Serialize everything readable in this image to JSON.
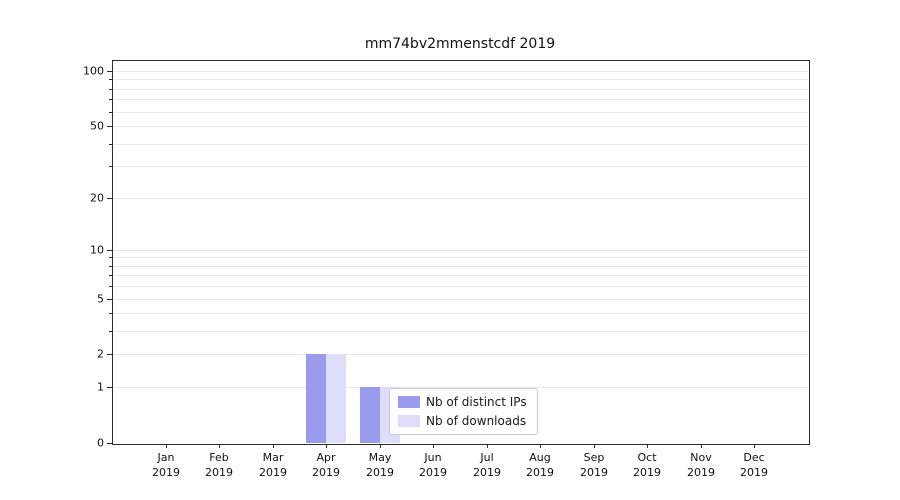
{
  "chart_data": {
    "type": "bar",
    "title": "mm74bv2mmenstcdf 2019",
    "categories": [
      "Jan",
      "Feb",
      "Mar",
      "Apr",
      "May",
      "Jun",
      "Jul",
      "Aug",
      "Sep",
      "Oct",
      "Nov",
      "Dec"
    ],
    "year": "2019",
    "series": [
      {
        "name": "Nb of distinct IPs",
        "color": "#9b9bee",
        "values": [
          0,
          0,
          0,
          2,
          1,
          0,
          0,
          0,
          0,
          0,
          0,
          0
        ]
      },
      {
        "name": "Nb of downloads",
        "color": "#dedefb",
        "values": [
          0,
          0,
          0,
          2,
          1,
          0,
          0,
          0,
          0,
          0,
          0,
          0
        ]
      }
    ],
    "yticks": [
      0,
      1,
      2,
      5,
      10,
      20,
      50,
      100
    ],
    "ylim": [
      0,
      115
    ],
    "yscale": "log1p",
    "grid": "horizontal",
    "legend_position": "lower-center-inside"
  }
}
